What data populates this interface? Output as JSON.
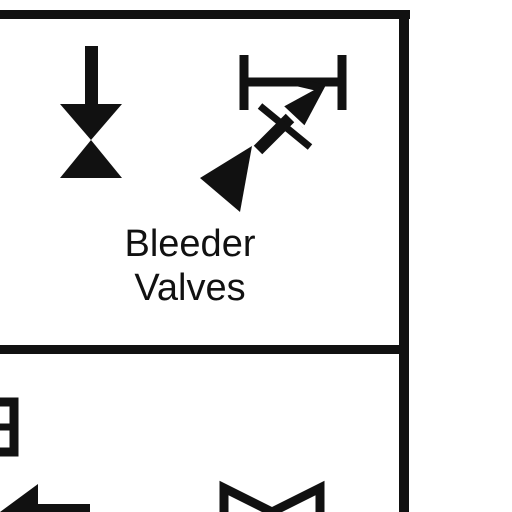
{
  "legend_cell": {
    "caption_line1": "Bleeder",
    "caption_line2": "Valves",
    "symbols": [
      {
        "name": "bleeder-valve-symbol"
      },
      {
        "name": "bleeder-valve-angled-symbol"
      }
    ]
  },
  "colors": {
    "stroke": "#111111",
    "background": "#ffffff"
  }
}
